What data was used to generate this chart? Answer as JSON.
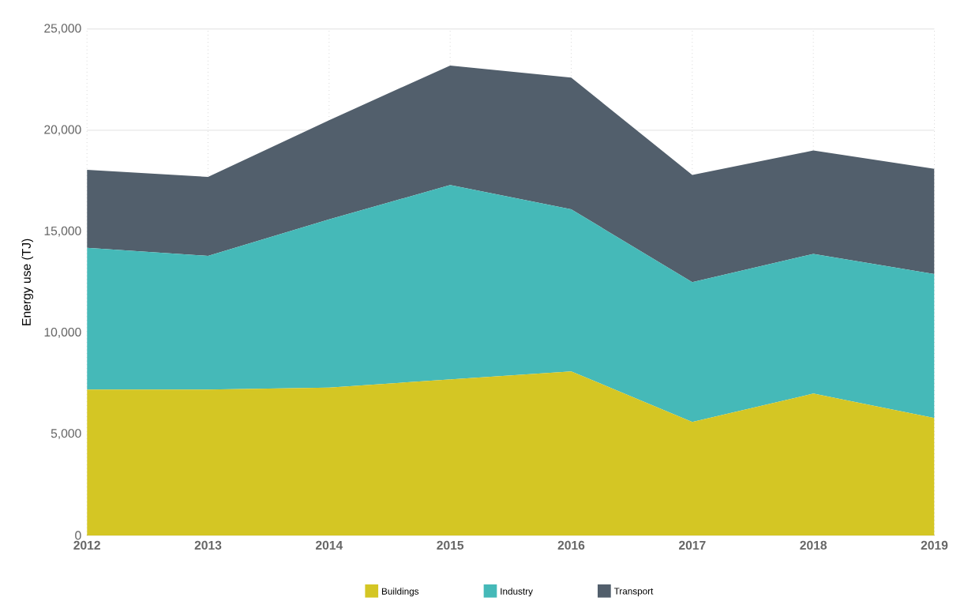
{
  "chart_data": {
    "type": "area",
    "stacked": true,
    "ylabel": "Energy use (TJ)",
    "x": [
      2012,
      2013,
      2014,
      2015,
      2016,
      2017,
      2018,
      2019
    ],
    "xlim": [
      2012,
      2019
    ],
    "xticks": [
      2012,
      2013,
      2014,
      2015,
      2016,
      2017,
      2018,
      2019
    ],
    "ylim": [
      0,
      25000
    ],
    "yticks": [
      {
        "value": 0,
        "label": "0"
      },
      {
        "value": 5000,
        "label": "5,000"
      },
      {
        "value": 10000,
        "label": "10,000"
      },
      {
        "value": 15000,
        "label": "15,000"
      },
      {
        "value": 20000,
        "label": "20,000"
      },
      {
        "value": 25000,
        "label": "25,000"
      }
    ],
    "grid": true,
    "legend": "bottom",
    "series": [
      {
        "name": "Buildings",
        "color": "#d4c624",
        "values": [
          7200,
          7200,
          7300,
          7700,
          8100,
          5600,
          7000,
          5800
        ]
      },
      {
        "name": "Industry",
        "color": "#45b9b8",
        "values": [
          7000,
          6600,
          8300,
          9600,
          8000,
          6900,
          6900,
          7100
        ]
      },
      {
        "name": "Transport",
        "color": "#525f6c",
        "values": [
          3850,
          3900,
          4900,
          5900,
          6500,
          5300,
          5100,
          5200
        ]
      }
    ]
  }
}
